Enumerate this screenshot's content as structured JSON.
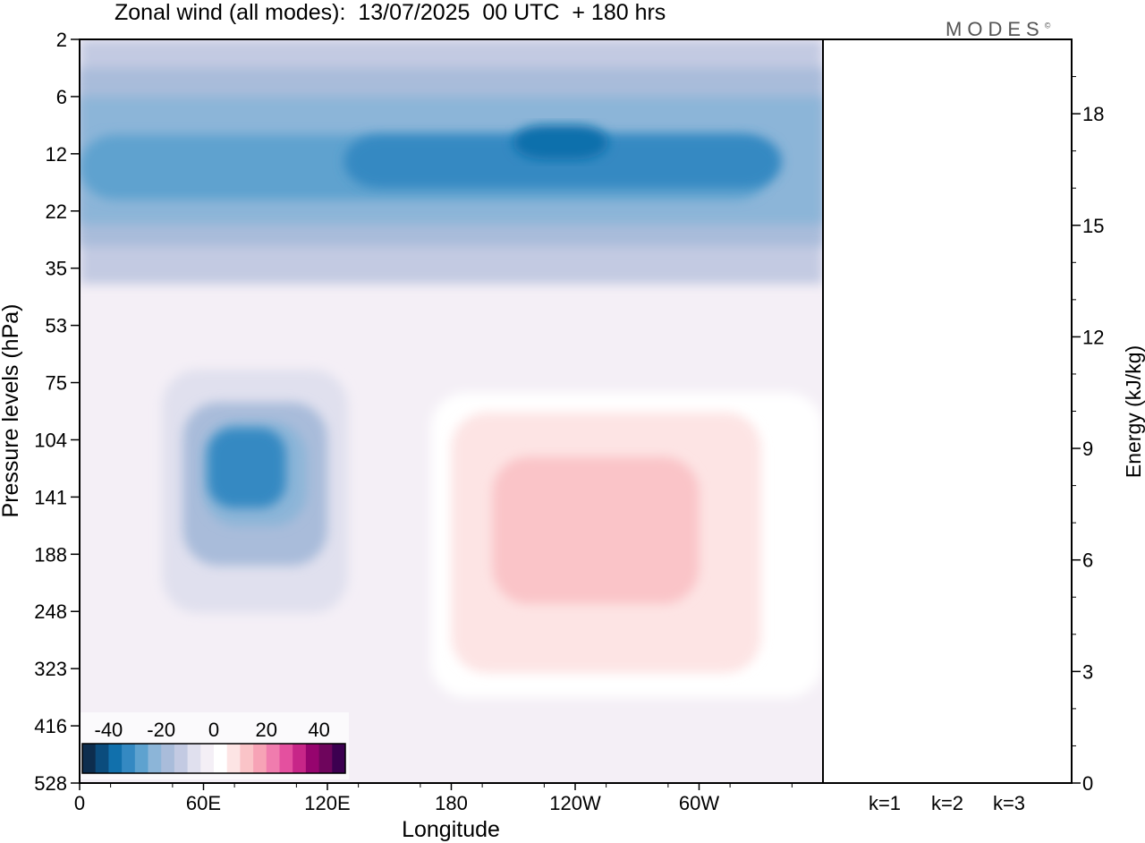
{
  "title": "Zonal wind (all modes):  13/07/2025  00 UTC  + 180 hrs",
  "logo": {
    "text": "MODES",
    "mark": "©"
  },
  "chart_data": [
    {
      "type": "heatmap",
      "title": "Zonal wind (all modes):  13/07/2025  00 UTC  + 180 hrs",
      "xlabel": "Longitude",
      "ylabel": "Pressure levels (hPa)",
      "x_ticks": [
        "0",
        "60E",
        "120E",
        "180",
        "120W",
        "60W"
      ],
      "y_ticks": [
        "2",
        "6",
        "12",
        "22",
        "35",
        "53",
        "75",
        "104",
        "141",
        "188",
        "248",
        "323",
        "416",
        "528"
      ],
      "colorbar": {
        "labels": [
          "-40",
          "-20",
          "0",
          "20",
          "40"
        ],
        "levels": [
          -45,
          -40,
          -35,
          -30,
          -25,
          -20,
          -15,
          -10,
          -5,
          0,
          5,
          10,
          15,
          20,
          25,
          30,
          35,
          40,
          45
        ],
        "colors": [
          "#0d2d4e",
          "#0b4c7d",
          "#1170ac",
          "#3489c2",
          "#5ea2cf",
          "#8cb5d8",
          "#a9bcda",
          "#c3cae2",
          "#e0e0ee",
          "#f4eff6",
          "#ffffff",
          "#fde4e4",
          "#fac4c8",
          "#f7a3b6",
          "#f07cae",
          "#e4509f",
          "#c72688",
          "#96046e",
          "#6e055c",
          "#3c0050"
        ]
      },
      "regions": [
        {
          "x": [
            0,
            360
          ],
          "p": [
            2,
            528
          ],
          "level": -2
        },
        {
          "x": [
            0,
            360
          ],
          "p": [
            2,
            40
          ],
          "level": -12
        },
        {
          "x": [
            0,
            360
          ],
          "p": [
            4,
            30
          ],
          "level": -18
        },
        {
          "x": [
            0,
            360
          ],
          "p": [
            6,
            25
          ],
          "level": -25
        },
        {
          "x": [
            0,
            335
          ],
          "p": [
            10,
            20
          ],
          "level": -28
        },
        {
          "x": [
            128,
            340
          ],
          "p": [
            10,
            18
          ],
          "level": -33
        },
        {
          "x": [
            210,
            256
          ],
          "p": [
            9,
            13
          ],
          "level": -40
        },
        {
          "x": [
            40,
            130
          ],
          "p": [
            70,
            250
          ],
          "level": -8
        },
        {
          "x": [
            50,
            120
          ],
          "p": [
            85,
            200
          ],
          "level": -16
        },
        {
          "x": [
            60,
            110
          ],
          "p": [
            95,
            165
          ],
          "level": -24
        },
        {
          "x": [
            62,
            100
          ],
          "p": [
            98,
            150
          ],
          "level": -31
        },
        {
          "x": [
            170,
            360
          ],
          "p": [
            80,
            370
          ],
          "level": 3
        },
        {
          "x": [
            180,
            330
          ],
          "p": [
            90,
            330
          ],
          "level": 6
        },
        {
          "x": [
            200,
            300
          ],
          "p": [
            115,
            240
          ],
          "level": 10
        }
      ]
    },
    {
      "type": "bar",
      "ylabel": "Energy (kJ/kg)",
      "categories": [
        "k=1",
        "k=2",
        "k=3"
      ],
      "values": [
        0.12,
        0.04,
        0.02
      ],
      "ylim": [
        0,
        20
      ],
      "y_ticks": [
        "0",
        "3",
        "6",
        "9",
        "12",
        "15",
        "18"
      ],
      "bar_color": "#1a1a8c"
    }
  ]
}
